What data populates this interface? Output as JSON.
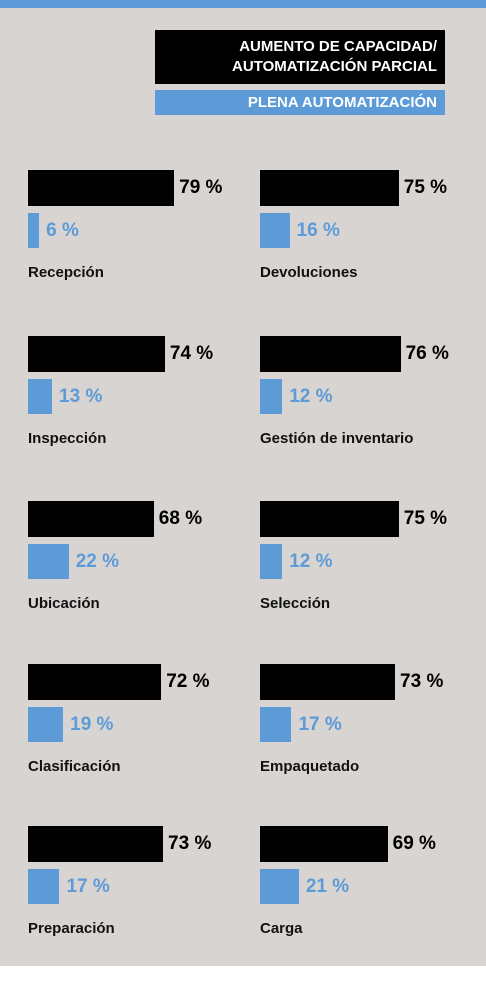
{
  "chart_data": {
    "type": "bar",
    "categories": [
      "Recepción",
      "Devoluciones",
      "Inspección",
      "Gestión de inventario",
      "Ubicación",
      "Selección",
      "Clasificación",
      "Empaquetado",
      "Preparación",
      "Carga"
    ],
    "series": [
      {
        "name": "AUMENTO DE CAPACIDAD/ AUTOMATIZACIÓN PARCIAL",
        "color": "#000000",
        "values": [
          79,
          75,
          74,
          76,
          68,
          75,
          72,
          73,
          73,
          69
        ],
        "value_labels": [
          "79 %",
          "75 %",
          "74 %",
          "76 %",
          "68 %",
          "75 %",
          "72 %",
          "73 %",
          "73 %",
          "69 %"
        ]
      },
      {
        "name": "PLENA AUTOMATIZACIÓN",
        "color": "#5d9bd8",
        "values": [
          6,
          16,
          13,
          12,
          22,
          12,
          19,
          17,
          17,
          21
        ],
        "value_labels": [
          "6 %",
          "16 %",
          "13 %",
          "12 %",
          "22 %",
          "12 %",
          "19 %",
          "17 %",
          "17 %",
          "21 %"
        ]
      }
    ]
  }
}
